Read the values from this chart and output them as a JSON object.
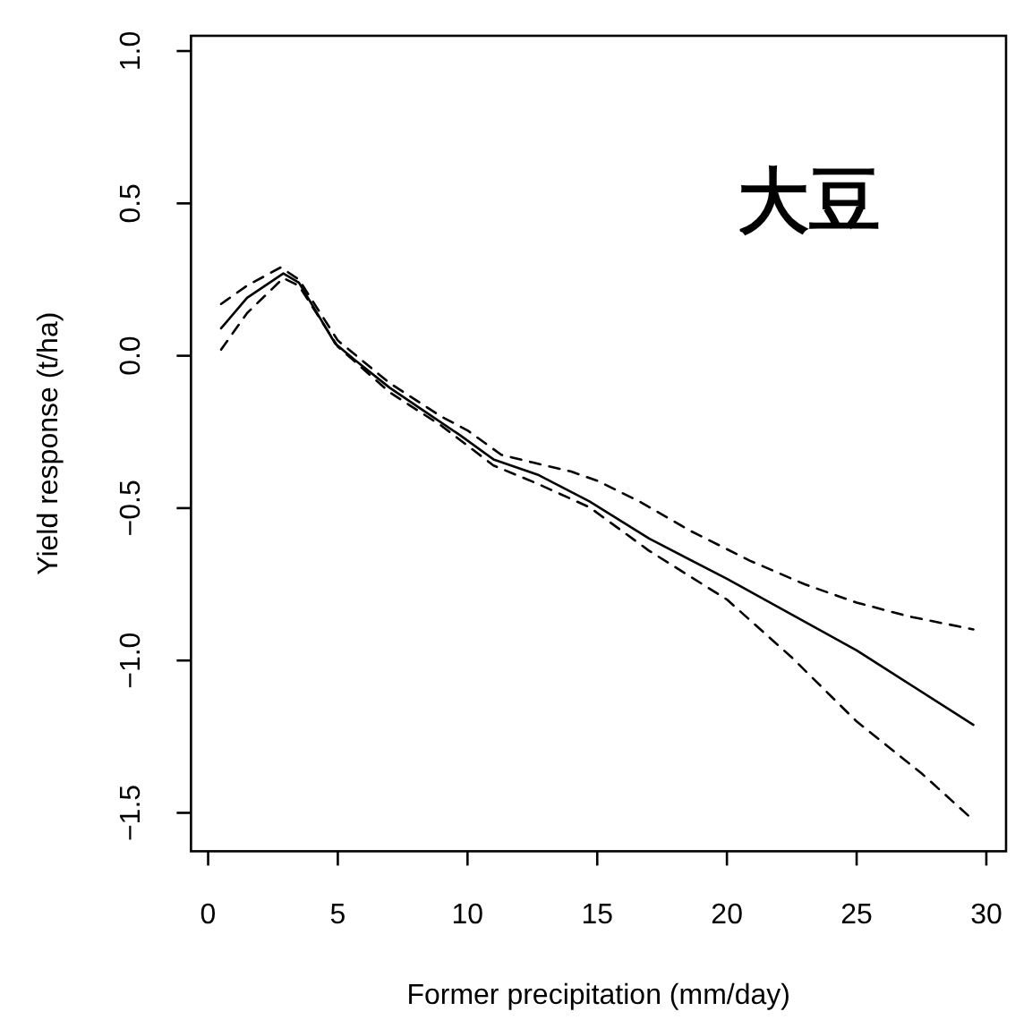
{
  "chart_data": {
    "type": "line",
    "xlabel": "Former precipitation (mm/day)",
    "ylabel": "Yield response (t/ha)",
    "annotations": [
      "大豆"
    ],
    "xlim": [
      -0.66,
      30.76
    ],
    "ylim": [
      -1.626,
      1.05
    ],
    "xticks": [
      0,
      5,
      10,
      15,
      20,
      25,
      30
    ],
    "yticks": [
      {
        "value": -1.5,
        "label": "−1.5"
      },
      {
        "value": -1.0,
        "label": "−1.0"
      },
      {
        "value": -0.5,
        "label": "−0.5"
      },
      {
        "value": 0,
        "label": "0.0"
      },
      {
        "value": 0.5,
        "label": "0.5"
      },
      {
        "value": 1.0,
        "label": "1.0"
      }
    ],
    "grid": false,
    "series": [
      {
        "color": "#000000",
        "line_style": "solid",
        "x": [
          0.5,
          1.5,
          2.9,
          3.5,
          4.9,
          5.6,
          7,
          8.3,
          9.7,
          11,
          12.7,
          14.7,
          17,
          20,
          25,
          29.5
        ],
        "values": [
          0.09,
          0.19,
          0.27,
          0.24,
          0.04,
          -0.01,
          -0.105,
          -0.18,
          -0.26,
          -0.34,
          -0.39,
          -0.478,
          -0.6,
          -0.732,
          -0.967,
          -1.211
        ]
      },
      {
        "color": "#000000",
        "line_style": "dashed",
        "x": [
          0.5,
          1.5,
          2.8,
          3.5,
          5,
          7,
          9,
          10,
          11.3,
          12.5,
          14,
          15,
          16.6,
          18.6,
          20.9,
          23,
          25,
          27,
          29.5
        ],
        "values": [
          0.17,
          0.23,
          0.29,
          0.25,
          0.05,
          -0.09,
          -0.2,
          -0.245,
          -0.325,
          -0.35,
          -0.38,
          -0.41,
          -0.477,
          -0.575,
          -0.673,
          -0.75,
          -0.81,
          -0.855,
          -0.898
        ]
      },
      {
        "color": "#000000",
        "line_style": "dashed",
        "x": [
          0.5,
          1.5,
          2.9,
          3.5,
          5,
          7,
          9,
          11,
          12.7,
          14.7,
          17,
          20,
          22.5,
          25,
          27.5,
          29.5
        ],
        "values": [
          0.02,
          0.14,
          0.255,
          0.23,
          0.03,
          -0.12,
          -0.23,
          -0.36,
          -0.42,
          -0.497,
          -0.64,
          -0.8,
          -0.99,
          -1.2,
          -1.37,
          -1.524
        ]
      }
    ]
  }
}
